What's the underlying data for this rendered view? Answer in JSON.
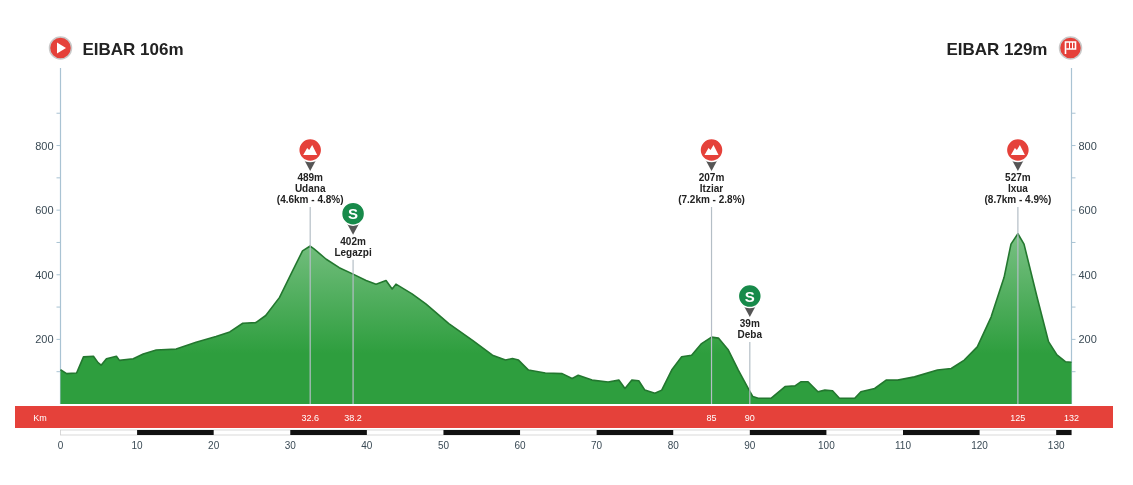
{
  "chart_data": {
    "type": "area",
    "x": [
      0,
      0.8,
      2.1,
      3.0,
      4.3,
      4.9,
      5.3,
      6.0,
      7.3,
      7.7,
      9.5,
      10.8,
      12.5,
      15.1,
      17.7,
      20.3,
      22.1,
      23.8,
      25.5,
      26.8,
      28.6,
      30.3,
      31.6,
      32.6,
      33.1,
      34.7,
      36.4,
      38.2,
      39.9,
      41.2,
      42.5,
      43.3,
      43.8,
      45.9,
      47.7,
      50.7,
      53.8,
      56.4,
      58.1,
      59.0,
      59.8,
      61.1,
      63.3,
      65.5,
      66.8,
      67.6,
      69.4,
      71.5,
      72.9,
      73.7,
      74.6,
      75.5,
      76.3,
      77.6,
      78.5,
      79.8,
      81.1,
      82.4,
      83.7,
      85,
      85.9,
      87.2,
      88.5,
      90,
      90.4,
      91.1,
      92.8,
      94.6,
      95.9,
      96.7,
      97.6,
      98.9,
      99.8,
      100.8,
      101.7,
      103.7,
      104.5,
      106.3,
      107.8,
      109.3,
      111.5,
      114.5,
      116.3,
      118.0,
      119.7,
      121.5,
      123.2,
      124.1,
      125,
      125.8,
      127.5,
      129.0,
      130.1,
      131.2,
      132
    ],
    "values": [
      106,
      94,
      96,
      146,
      148,
      128,
      120,
      140,
      148,
      135,
      140,
      155,
      167,
      170,
      191,
      209,
      223,
      250,
      252,
      274,
      330,
      412,
      474,
      489,
      480,
      448,
      422,
      402,
      382,
      371,
      382,
      356,
      371,
      341,
      310,
      249,
      197,
      151,
      136,
      141,
      136,
      105,
      96,
      94,
      79,
      89,
      74,
      68,
      74,
      48,
      74,
      72,
      43,
      33,
      43,
      105,
      146,
      151,
      187,
      207,
      204,
      167,
      105,
      39,
      23,
      18,
      18,
      54,
      56,
      69,
      69,
      38,
      43,
      41,
      18,
      18,
      38,
      48,
      74,
      74,
      84,
      105,
      110,
      136,
      177,
      269,
      392,
      495,
      527,
      495,
      331,
      193,
      152,
      131,
      129
    ],
    "color": "#2e9e3e",
    "xlim": [
      0,
      132
    ],
    "xticks": [
      0,
      10,
      20,
      30,
      40,
      50,
      60,
      70,
      80,
      90,
      100,
      110,
      120,
      130
    ],
    "ylim": [
      0,
      1040
    ],
    "yticks": [
      {
        "value": 100,
        "label": null
      },
      200,
      {
        "value": 300,
        "label": null
      },
      400,
      {
        "value": 500,
        "label": null
      },
      600,
      {
        "value": 700,
        "label": null
      },
      800,
      {
        "value": 900,
        "label": null
      }
    ],
    "y2lim": [
      0,
      1040
    ],
    "y2ticks": [
      {
        "value": 100,
        "label": null
      },
      200,
      {
        "value": 300,
        "label": null
      },
      400,
      {
        "value": 500,
        "label": null
      },
      600,
      {
        "value": 700,
        "label": null
      },
      800,
      {
        "value": 900,
        "label": null
      }
    ],
    "x2lim": [
      0,
      132
    ],
    "x2ticks": [
      32.6,
      38.2,
      85,
      90,
      125,
      132
    ],
    "x2label": "Km",
    "ref_lines": [
      {
        "axis": "x",
        "value": 32.6,
        "label": "489m\nUdana\n(4.6km - 4.8%)",
        "color": "#b4bec6"
      },
      {
        "axis": "x",
        "value": 38.2,
        "label": "402m\nLegazpi",
        "color": "#b4bec6"
      },
      {
        "axis": "x",
        "value": 85,
        "label": "207m\nItziar\n(7.2km - 2.8%)",
        "color": "#b4bec6"
      },
      {
        "axis": "x",
        "value": 90,
        "label": "39m\nDeba",
        "color": "#b4bec6"
      },
      {
        "axis": "x",
        "value": 125,
        "label": "527m\nIxua\n(8.7km - 4.9%)",
        "color": "#b4bec6"
      }
    ],
    "annotations": [
      "EIBAR 106m",
      "EIBAR 129m",
      "S",
      "S"
    ]
  }
}
